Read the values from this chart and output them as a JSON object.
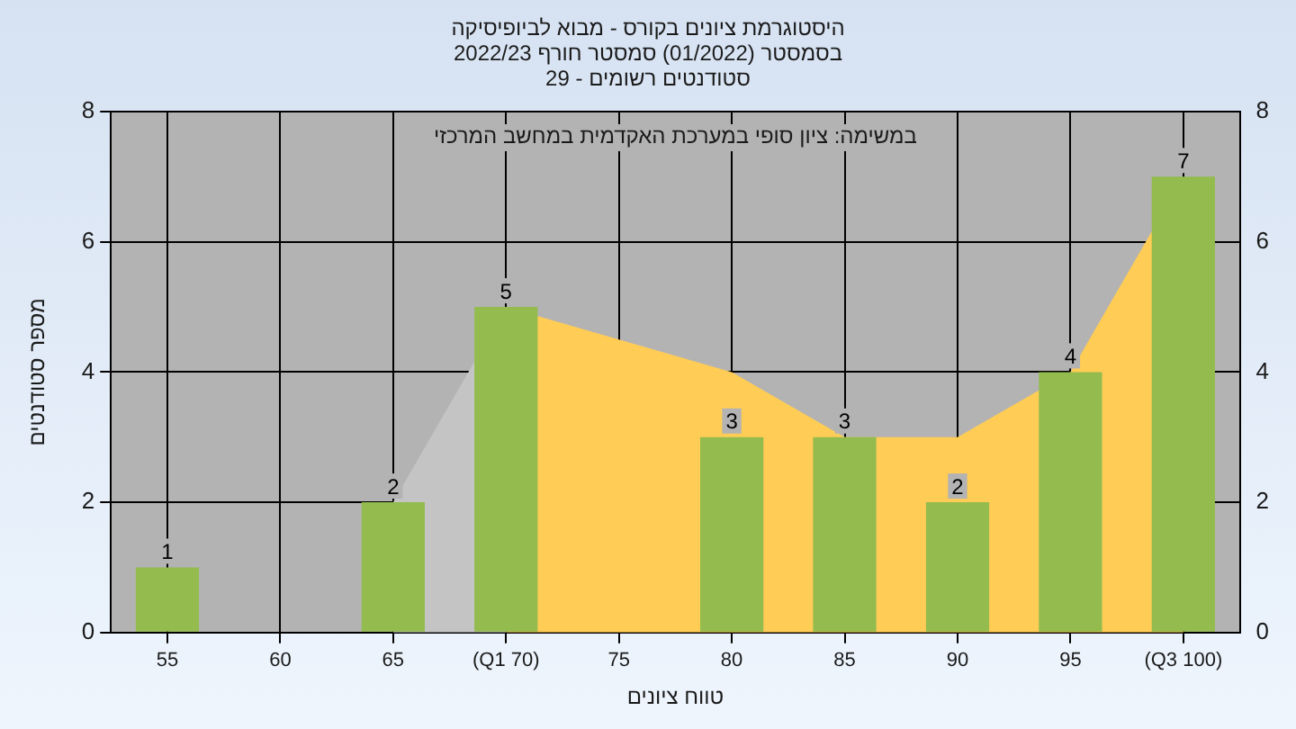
{
  "chart_data": {
    "type": "bar",
    "title": "היסטוגרמת ציונים בקורס - מבוא לביופיסיקה",
    "subtitle": "בסמסטר (01/2022) סמסטר חורף 2022/23\nסטודנטים רשומים - 29",
    "xlabel": "טווח ציונים",
    "ylabel": "מספר סטודנטים",
    "annotations": [
      "במשימה: ציון סופי במערכת האקדמית במחשב המרכזי"
    ],
    "categories": [
      "55",
      "60",
      "65",
      "(Q1 70)",
      "75",
      "80",
      "85",
      "90",
      "95",
      "(Q3 100)"
    ],
    "series": [
      {
        "color": "#93bb4e",
        "values": [
          1,
          0,
          2,
          5,
          0,
          3,
          3,
          2,
          4,
          7
        ],
        "value_labels": [
          "1",
          null,
          "2",
          "5",
          null,
          "3",
          "3",
          "2",
          "4",
          "7"
        ]
      },
      {
        "type": "area",
        "color": "#c4c4c4",
        "values": [
          null,
          null,
          2,
          5,
          null,
          null,
          null,
          null,
          null,
          null
        ]
      },
      {
        "type": "area",
        "color": "#ffcc55",
        "values": [
          null,
          null,
          null,
          5,
          4.5,
          4,
          3,
          3,
          4,
          7
        ]
      }
    ],
    "ylim": [
      0,
      8
    ],
    "yticks": [
      0,
      2,
      4,
      6,
      8
    ],
    "y2lim": [
      0,
      8
    ],
    "y2ticks": [
      0,
      2,
      4,
      6,
      8
    ],
    "grid": true,
    "legend": false
  }
}
